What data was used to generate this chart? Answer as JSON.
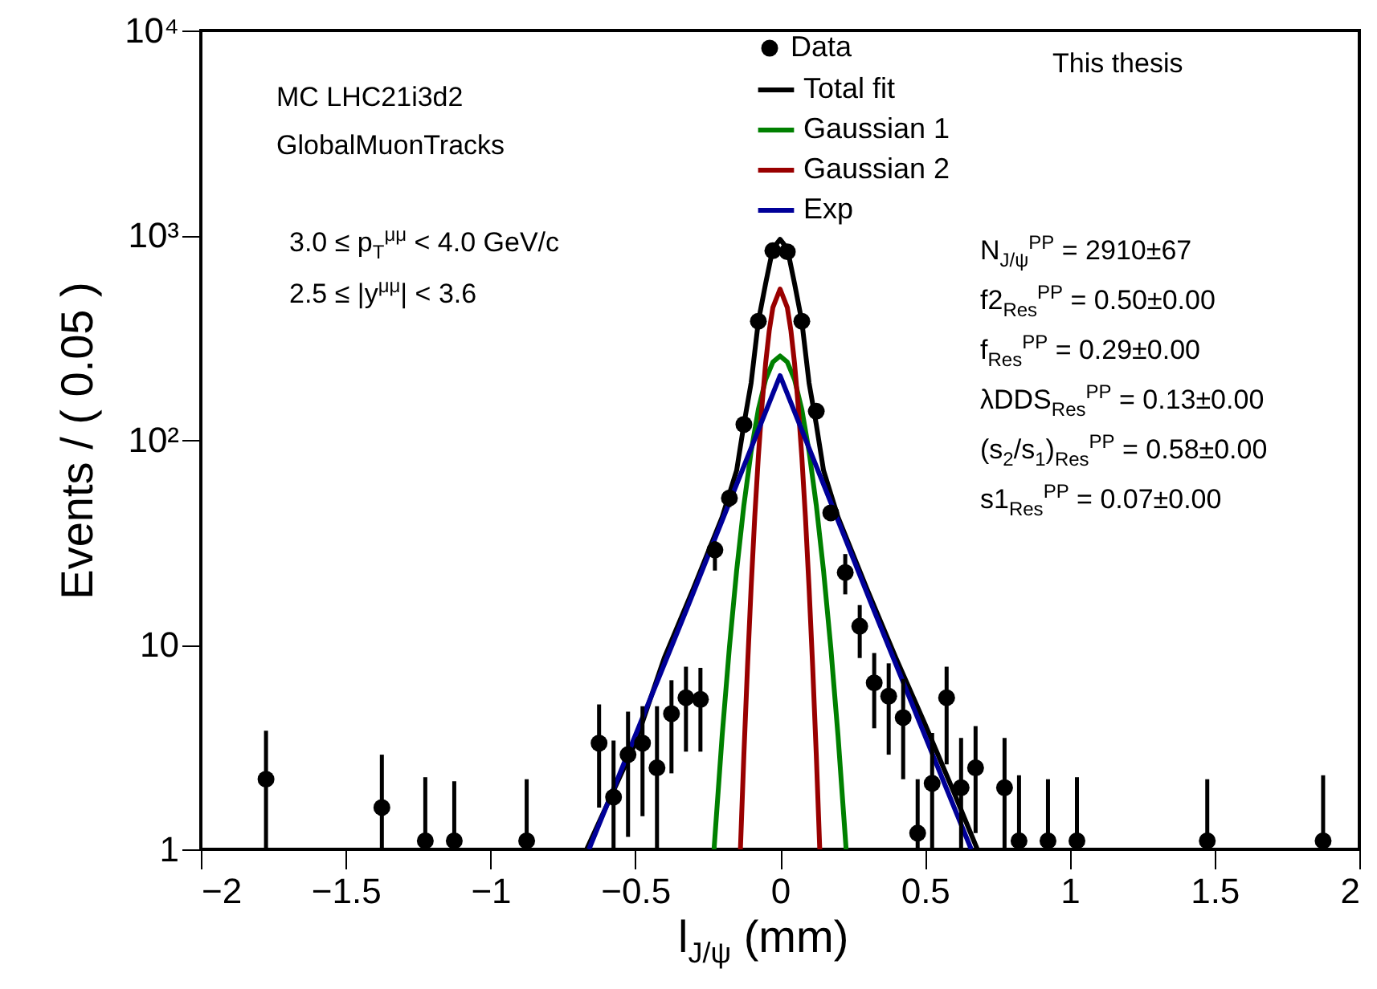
{
  "chart_data": {
    "type": "scatter",
    "ylabel": "Events / ( 0.05 )",
    "xlabel": "l$_{J/ψ}$ (mm)",
    "log": true,
    "legend": "top",
    "line_style": "solid",
    "xlim": [
      -2,
      2
    ],
    "xticks": [
      {
        "value": -2,
        "label": "−2"
      },
      {
        "value": -1.5,
        "label": "−1.5"
      },
      {
        "value": -1,
        "label": "−1"
      },
      {
        "value": -0.5,
        "label": "−0.5"
      },
      0,
      0.5,
      1,
      1.5,
      2
    ],
    "ylim": [
      1,
      10000
    ],
    "yticks": [
      1,
      10,
      {
        "value": 100,
        "label": "10²"
      },
      {
        "value": 1000,
        "label": "10³"
      },
      {
        "value": 10000,
        "label": "10⁴"
      }
    ],
    "annotations": [
      "MC LHC21i3d2",
      "GlobalMuonTracks",
      "3.0 ≤ p$_{T}$$^{μμ}$ < 4.0 GeV/c",
      "2.5 ≤ |y$^{μμ}$| < 3.6",
      "This thesis",
      "N$_{J/ψ}$$^{PP}$ = 2910±67",
      "f2$_{Res}$$^{PP}$ = 0.50±0.00",
      "f$_{Res}$$^{PP}$ = 0.29±0.00",
      "λDDS$_{Res}$$^{PP}$ = 0.13±0.00",
      "(s$_{2}$/s$_{1}$)$_{Res}$$^{PP}$ = 0.58±0.00",
      "s1$_{Res}$$^{PP}$ = 0.07±0.00"
    ],
    "series": [
      {
        "name": "Data",
        "marker": "circle",
        "color": "#000000",
        "x": [
          -1.775,
          -1.375,
          -1.225,
          -1.125,
          -0.875,
          -0.625,
          -0.575,
          -0.525,
          -0.475,
          -0.425,
          -0.375,
          -0.325,
          -0.275,
          -0.225,
          -0.175,
          -0.125,
          -0.075,
          -0.025,
          0.025,
          0.075,
          0.125,
          0.175,
          0.225,
          0.275,
          0.325,
          0.375,
          0.425,
          0.475,
          0.525,
          0.575,
          0.625,
          0.675,
          0.775,
          0.825,
          0.925,
          1.025,
          1.475,
          1.875
        ],
        "values": [
          2.2,
          1.6,
          1.1,
          1.1,
          1.1,
          3.3,
          1.8,
          2.9,
          3.3,
          2.5,
          4.6,
          5.5,
          5.4,
          29,
          52,
          119,
          380,
          840,
          830,
          380,
          138,
          44,
          22.5,
          12.3,
          6.5,
          5.6,
          4.4,
          1.2,
          2.1,
          5.5,
          2.0,
          2.5,
          2.0,
          1.1,
          1.1,
          1.1,
          1.1,
          1.1
        ],
        "errors": [
          [
            1,
            3.8
          ],
          [
            1,
            2.9
          ],
          [
            1,
            2.25
          ],
          [
            1,
            2.15
          ],
          [
            1,
            2.2
          ],
          [
            1.6,
            5.1
          ],
          [
            1,
            3.4
          ],
          [
            1.15,
            4.7
          ],
          [
            1.45,
            5.0
          ],
          [
            1,
            5.0
          ],
          [
            2.35,
            6.7
          ],
          [
            3.0,
            7.8
          ],
          [
            3.0,
            7.7
          ],
          [
            23,
            32
          ],
          [
            47,
            57
          ],
          null,
          null,
          null,
          null,
          null,
          null,
          null,
          [
            17.6,
            27.7
          ],
          [
            8.6,
            15.6
          ],
          [
            3.9,
            9.1
          ],
          [
            2.9,
            8.1
          ],
          [
            2.2,
            6.8
          ],
          [
            1,
            2.2
          ],
          [
            1,
            3.7
          ],
          [
            2.6,
            7.8
          ],
          [
            1,
            3.5
          ],
          [
            1.2,
            4.0
          ],
          [
            1,
            3.5
          ],
          [
            1,
            2.3
          ],
          [
            1,
            2.2
          ],
          [
            1,
            2.25
          ],
          [
            1,
            2.2
          ],
          [
            1,
            2.3
          ]
        ]
      },
      {
        "name": "Total fit",
        "type": "line",
        "color": "#000000",
        "x": [
          -0.668,
          -0.5,
          -0.4,
          -0.3,
          -0.2,
          -0.15,
          -0.125,
          -0.1,
          -0.075,
          -0.05,
          -0.025,
          0,
          0.025,
          0.05,
          0.075,
          0.1,
          0.125,
          0.15,
          0.2,
          0.3,
          0.4,
          0.5,
          0.6,
          0.681
        ],
        "values": [
          1,
          3.3,
          8.6,
          18.7,
          42,
          71,
          119,
          190,
          380,
          580,
          860,
          955,
          860,
          580,
          380,
          190,
          119,
          71,
          42,
          18.7,
          8.6,
          4.1,
          1.9,
          1
        ]
      },
      {
        "name": "Gaussian 1",
        "type": "line",
        "color": "#008000",
        "x": [
          -0.228,
          -0.225,
          -0.2,
          -0.175,
          -0.15,
          -0.125,
          -0.1,
          -0.075,
          -0.05,
          -0.025,
          0,
          0.025,
          0.05,
          0.075,
          0.1,
          0.125,
          0.15,
          0.175,
          0.2,
          0.225,
          0.228
        ],
        "values": [
          1,
          1.15,
          3.6,
          9.7,
          23,
          48,
          88,
          141,
          197,
          240,
          257,
          240,
          197,
          141,
          88,
          48,
          23,
          9.7,
          3.6,
          1.15,
          1
        ]
      },
      {
        "name": "Gaussian 2",
        "type": "line",
        "color": "#990000",
        "x": [
          -0.137,
          -0.125,
          -0.1125,
          -0.1,
          -0.0875,
          -0.075,
          -0.0625,
          -0.05,
          -0.0375,
          -0.025,
          0,
          0.025,
          0.0375,
          0.05,
          0.0625,
          0.075,
          0.0875,
          0.1,
          0.1125,
          0.125,
          0.137
        ],
        "values": [
          1,
          2.9,
          7.8,
          19,
          42,
          83,
          147,
          236,
          341,
          443,
          546,
          443,
          341,
          236,
          147,
          83,
          42,
          19,
          7.8,
          2.9,
          1
        ]
      },
      {
        "name": "Exp",
        "type": "line",
        "color": "#000099",
        "x": [
          -0.66,
          -0.33,
          0,
          0.33,
          0.66
        ],
        "values": [
          1,
          14,
          206,
          14,
          1
        ]
      }
    ]
  }
}
